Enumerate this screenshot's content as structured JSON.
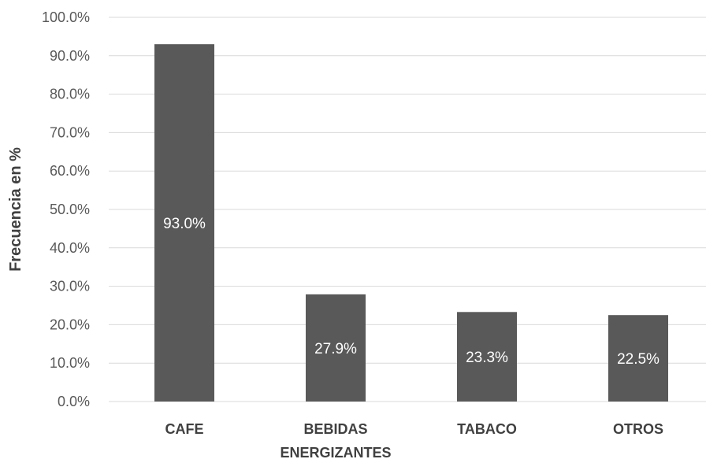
{
  "chart_data": {
    "type": "bar",
    "title": "",
    "xlabel": "",
    "ylabel": "Frecuencia en %",
    "categories": [
      [
        "CAFE"
      ],
      [
        "BEBIDAS",
        "ENERGIZANTES"
      ],
      [
        "TABACO"
      ],
      [
        "OTROS"
      ]
    ],
    "values": [
      93.0,
      27.9,
      23.3,
      22.5
    ],
    "data_labels": [
      "93.0%",
      "27.9%",
      "23.3%",
      "22.5%"
    ],
    "ylim": [
      0,
      100
    ],
    "yticks": [
      "0.0%",
      "10.0%",
      "20.0%",
      "30.0%",
      "40.0%",
      "50.0%",
      "60.0%",
      "70.0%",
      "80.0%",
      "90.0%",
      "100.0%"
    ],
    "grid": true,
    "legend": "none",
    "colors": {
      "bar": "#595959",
      "grid": "#d9d9d9",
      "data_label": "#ffffff"
    }
  }
}
